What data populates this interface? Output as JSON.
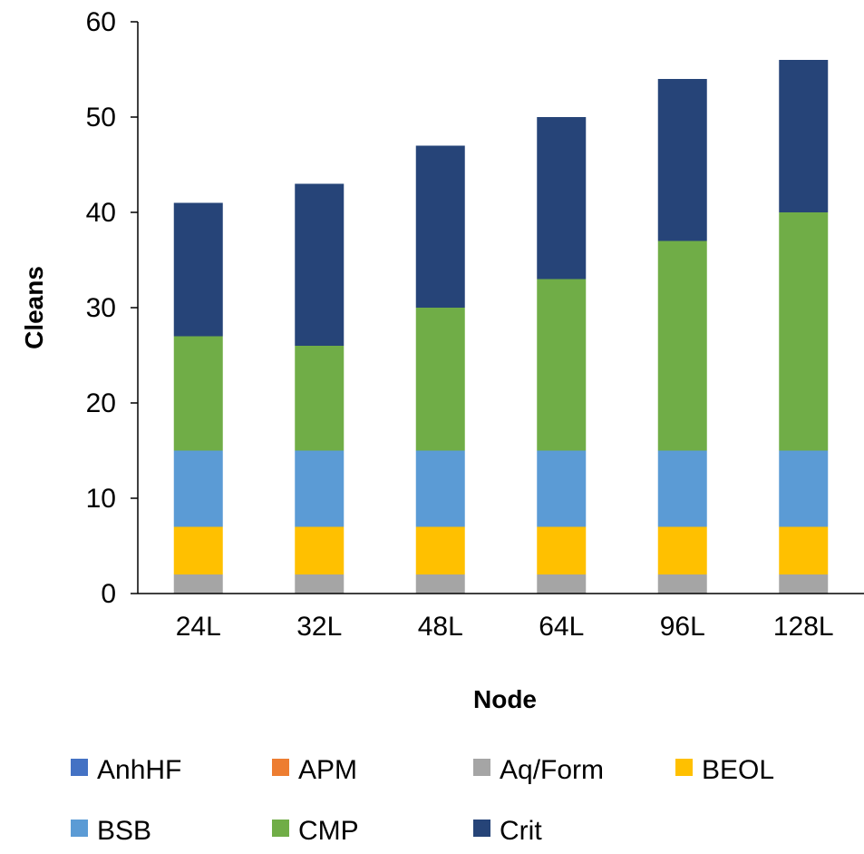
{
  "chart_data": {
    "type": "bar",
    "stacked": true,
    "title": "",
    "xlabel": "Node",
    "ylabel": "Cleans",
    "ylim": [
      0,
      60
    ],
    "yticks": [
      0,
      10,
      20,
      30,
      40,
      50,
      60
    ],
    "grid": false,
    "legend_position": "bottom",
    "categories": [
      "24L",
      "32L",
      "48L",
      "64L",
      "96L",
      "128L"
    ],
    "series": [
      {
        "name": "AnhHF",
        "color": "#4472C4",
        "values": [
          0,
          0,
          0,
          0,
          0,
          0
        ]
      },
      {
        "name": "APM",
        "color": "#ED7D31",
        "values": [
          0,
          0,
          0,
          0,
          0,
          0
        ]
      },
      {
        "name": "Aq/Form",
        "color": "#A5A5A5",
        "values": [
          2,
          2,
          2,
          2,
          2,
          2
        ]
      },
      {
        "name": "BEOL",
        "color": "#FFC000",
        "values": [
          5,
          5,
          5,
          5,
          5,
          5
        ]
      },
      {
        "name": "BSB",
        "color": "#5B9BD5",
        "values": [
          8,
          8,
          8,
          8,
          8,
          8
        ]
      },
      {
        "name": "CMP",
        "color": "#70AD47",
        "values": [
          12,
          11,
          15,
          18,
          22,
          25
        ]
      },
      {
        "name": "Crit",
        "color": "#264478",
        "values": [
          14,
          17,
          17,
          17,
          17,
          16
        ]
      }
    ]
  }
}
